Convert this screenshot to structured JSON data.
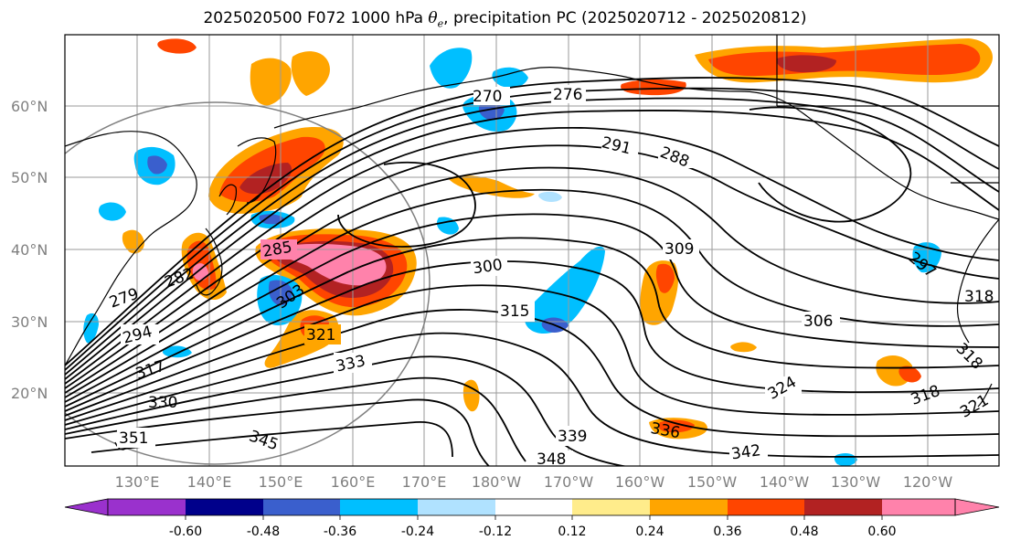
{
  "title": {
    "prefix": "2025020500 F072 1000 hPa ",
    "symbol": "θ",
    "symbol_sub": "e",
    "suffix": ", precipitation PC (2025020712 - 2025020812)"
  },
  "lat_labels": [
    "60°N",
    "50°N",
    "40°N",
    "30°N",
    "20°N"
  ],
  "lon_labels": [
    "130°E",
    "140°E",
    "150°E",
    "160°E",
    "170°E",
    "180°W",
    "170°W",
    "160°W",
    "150°W",
    "140°W",
    "130°W",
    "120°W"
  ],
  "contour_labels": [
    "270",
    "276",
    "291",
    "288",
    "285",
    "282",
    "279",
    "303",
    "300",
    "309",
    "315",
    "294",
    "321",
    "317",
    "333",
    "330",
    "351",
    "345",
    "339",
    "336",
    "348",
    "342",
    "324",
    "306",
    "318",
    "318",
    "318",
    "321",
    "297"
  ],
  "colorbar": {
    "colors": [
      "#9a31cd",
      "#00008b",
      "#3a5fcd",
      "#00bfff",
      "#b0e2ff",
      "#ffffff",
      "#ffec8b",
      "#ffa500",
      "#ff4500",
      "#b22222",
      "#ff82ab"
    ],
    "tick_labels": [
      "-0.60",
      "-0.48",
      "-0.36",
      "-0.24",
      "-0.12",
      "0.12",
      "0.24",
      "0.36",
      "0.48",
      "0.60"
    ]
  },
  "colors": {
    "contour": "#000000",
    "coast": "#000000",
    "grid": "#9a9a9a",
    "tick_text": "#808080",
    "circle": "#808080"
  }
}
